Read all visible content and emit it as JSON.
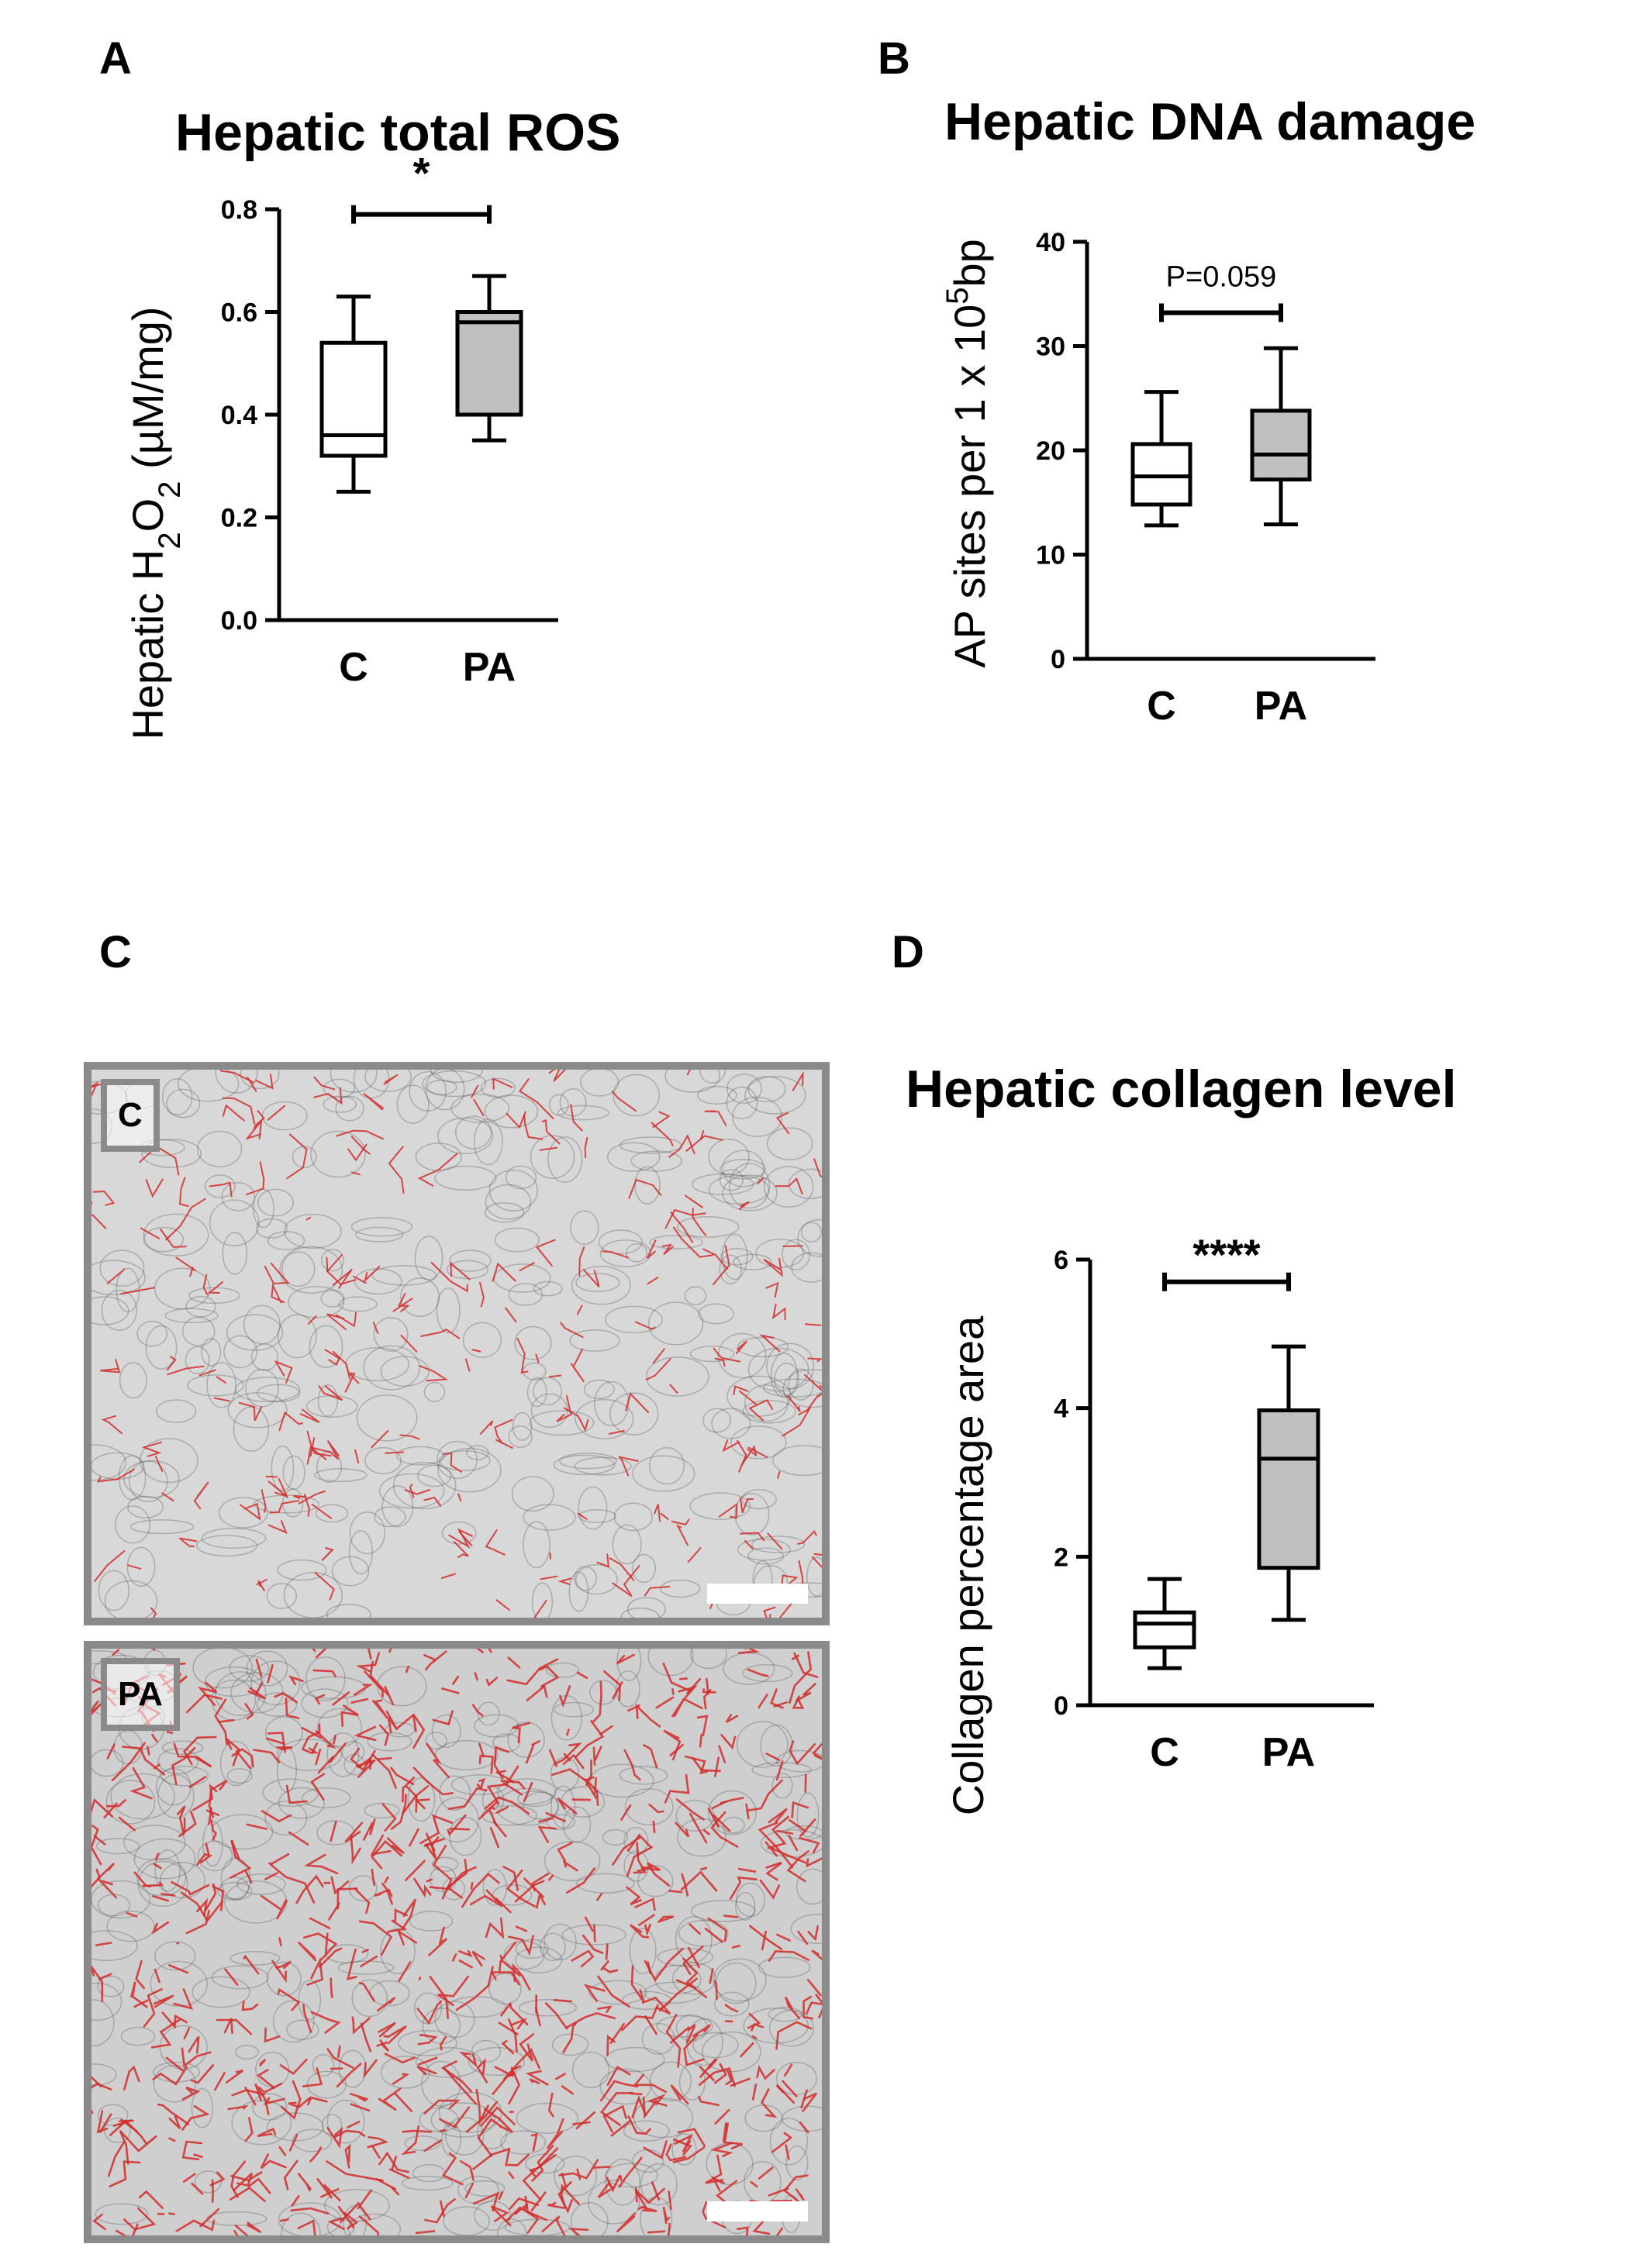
{
  "panels": {
    "A": {
      "letter": "A",
      "title": "Hepatic total ROS",
      "ylabel_parts": [
        "Hepatic H",
        "2",
        "O",
        "2",
        " (µM/mg)"
      ]
    },
    "B": {
      "letter": "B",
      "title": "Hepatic DNA damage",
      "ylabel_parts": [
        "AP sites per 1 x 10",
        "5",
        "bp"
      ]
    },
    "C": {
      "letter": "C",
      "image_labels": [
        "C",
        "PA"
      ],
      "colors": {
        "tissue": "#d9d9d9",
        "collagen": "#d42a2a",
        "frame": "#8a8a8a"
      }
    },
    "D": {
      "letter": "D",
      "title": "Hepatic collagen level",
      "ylabel": "Collagen percentage area"
    }
  },
  "chart_data": [
    {
      "type": "box",
      "title": "Hepatic total ROS",
      "categories": [
        "C",
        "PA"
      ],
      "ylim": [
        0,
        0.8
      ],
      "yticks": [
        "0.0",
        "0.2",
        "0.4",
        "0.6",
        "0.8"
      ],
      "ytick_values": [
        0,
        0.2,
        0.4,
        0.6,
        0.8
      ],
      "boxes": [
        {
          "category": "C",
          "min": 0.25,
          "q1": 0.32,
          "median": 0.36,
          "q3": 0.54,
          "max": 0.63,
          "fill": "#ffffff"
        },
        {
          "category": "PA",
          "min": 0.35,
          "q1": 0.4,
          "median": 0.58,
          "q3": 0.6,
          "max": 0.67,
          "fill": "#c0c0c0"
        }
      ],
      "significance": {
        "label": "*",
        "y": 0.79
      }
    },
    {
      "type": "box",
      "title": "Hepatic DNA damage",
      "categories": [
        "C",
        "PA"
      ],
      "ylim": [
        0,
        40
      ],
      "yticks": [
        "0",
        "10",
        "20",
        "30",
        "40"
      ],
      "ytick_values": [
        0,
        10,
        20,
        30,
        40
      ],
      "boxes": [
        {
          "category": "C",
          "min": 12.8,
          "q1": 14.8,
          "median": 17.5,
          "q3": 20.6,
          "max": 25.6,
          "fill": "#ffffff"
        },
        {
          "category": "PA",
          "min": 12.9,
          "q1": 17.2,
          "median": 19.6,
          "q3": 23.8,
          "max": 29.8,
          "fill": "#c0c0c0"
        }
      ],
      "significance": {
        "label": "P=0.059",
        "y": 33.2
      }
    },
    {
      "type": "box",
      "title": "Hepatic collagen level",
      "categories": [
        "C",
        "PA"
      ],
      "ylim": [
        0,
        6
      ],
      "yticks": [
        "0",
        "2",
        "4",
        "6"
      ],
      "ytick_values": [
        0,
        2,
        4,
        6
      ],
      "boxes": [
        {
          "category": "C",
          "min": 0.5,
          "q1": 0.78,
          "median": 1.1,
          "q3": 1.25,
          "max": 1.7,
          "fill": "#ffffff"
        },
        {
          "category": "PA",
          "min": 1.15,
          "q1": 1.85,
          "median": 3.32,
          "q3": 3.97,
          "max": 4.83,
          "fill": "#c0c0c0"
        }
      ],
      "significance": {
        "label": "****",
        "y": 5.7
      }
    }
  ]
}
